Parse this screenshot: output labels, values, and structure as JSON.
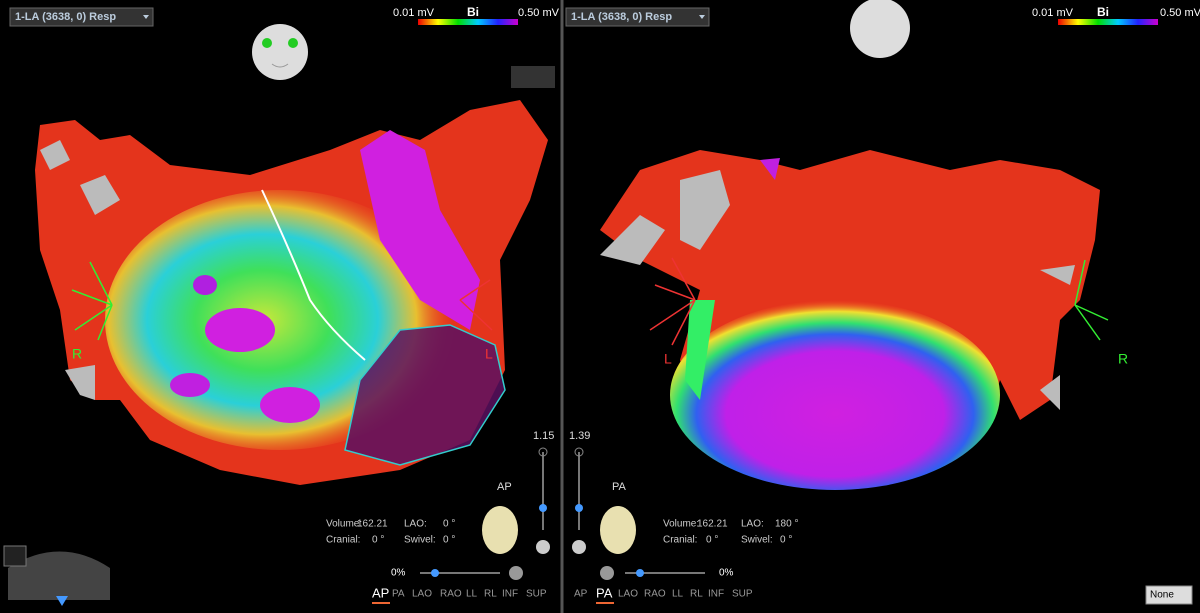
{
  "panels": [
    {
      "dropdown": "1-LA (3638, 0) Resp",
      "colorbar": {
        "min": "0.01 mV",
        "label": "Bi",
        "max": "0.50 mV"
      },
      "markers": [
        "R",
        "L"
      ],
      "zoom": "1.15",
      "orientation": "AP",
      "info": [
        [
          "Volume:",
          "162.21"
        ],
        [
          "LAO:",
          "0 °"
        ],
        [
          "Cranial:",
          "0 °"
        ],
        [
          "Swivel:",
          "0 °"
        ]
      ],
      "opacity": "0%",
      "views": [
        "AP",
        "PA",
        "LAO",
        "RAO",
        "LL",
        "RL",
        "INF",
        "SUP"
      ],
      "active_view": 0
    },
    {
      "dropdown": "1-LA (3638, 0) Resp",
      "colorbar": {
        "min": "0.01 mV",
        "label": "Bi",
        "max": "0.50 mV"
      },
      "markers": [
        "L",
        "R"
      ],
      "zoom": "1.39",
      "orientation": "PA",
      "info": [
        [
          "Volume:",
          "162.21"
        ],
        [
          "LAO:",
          "180 °"
        ],
        [
          "Cranial:",
          "0 °"
        ],
        [
          "Swivel:",
          "0 °"
        ]
      ],
      "opacity": "0%",
      "views": [
        "AP",
        "PA",
        "LAO",
        "RAO",
        "LL",
        "RL",
        "INF",
        "SUP"
      ],
      "active_view": 1
    }
  ],
  "layout_dropdown": "None"
}
